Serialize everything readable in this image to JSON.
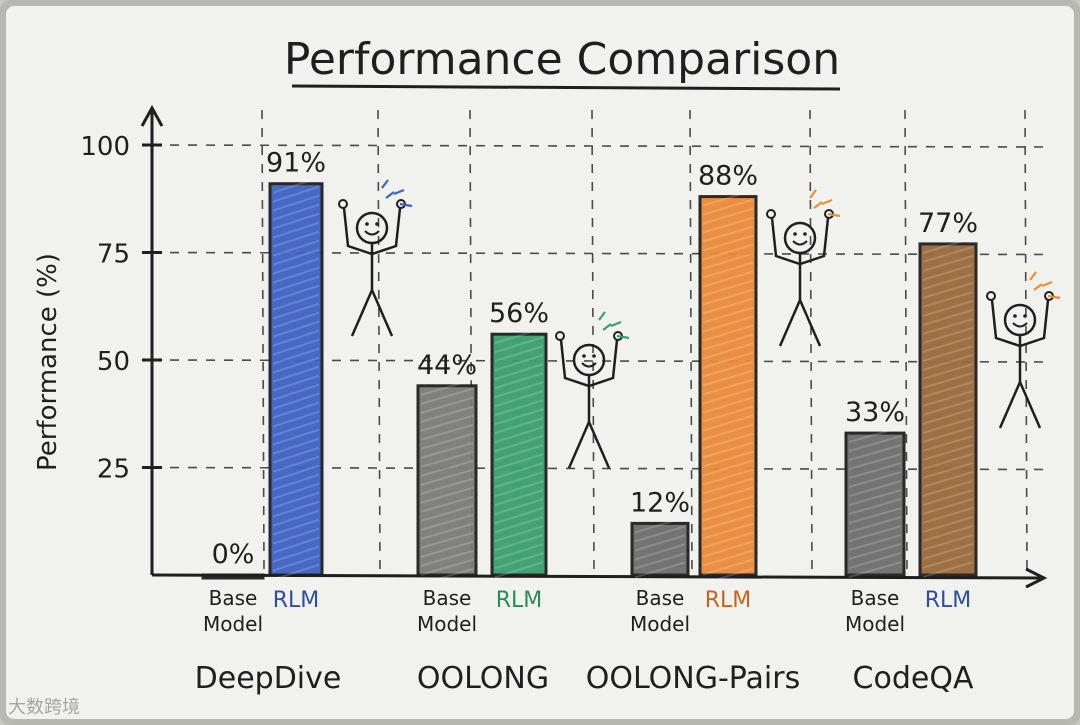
{
  "chart_data": {
    "type": "bar",
    "title": "Performance Comparison",
    "ylabel": "Performance (%)",
    "xlabel": "",
    "ylim": [
      0,
      100
    ],
    "yticks": [
      25,
      50,
      75,
      100
    ],
    "grid": true,
    "groups": [
      {
        "name": "DeepDive",
        "bars": [
          {
            "label": "Base Model",
            "value": 0,
            "value_label": "0%",
            "color": "#555555"
          },
          {
            "label": "RLM",
            "value": 91,
            "value_label": "91%",
            "color": "#3d62c4"
          }
        ]
      },
      {
        "name": "OOLONG",
        "bars": [
          {
            "label": "Base Model",
            "value": 44,
            "value_label": "44%",
            "color": "#7a7a7a"
          },
          {
            "label": "RLM",
            "value": 56,
            "value_label": "56%",
            "color": "#3a9e6e"
          }
        ]
      },
      {
        "name": "OOLONG-Pairs",
        "bars": [
          {
            "label": "Base Model",
            "value": 12,
            "value_label": "12%",
            "color": "#6e6e6e"
          },
          {
            "label": "RLM",
            "value": 88,
            "value_label": "88%",
            "color": "#ea8a38"
          }
        ]
      },
      {
        "name": "CodeQA",
        "bars": [
          {
            "label": "Base Model",
            "value": 33,
            "value_label": "33%",
            "color": "#6e6e6e"
          },
          {
            "label": "RLM",
            "value": 77,
            "value_label": "77%",
            "color": "#9a6a3a"
          }
        ]
      }
    ]
  },
  "colors": {
    "board": "#f1f1ee",
    "frame": "#b8b8b3",
    "ink": "#1f1f1f",
    "grid": "#4a4a4a",
    "rlm_label_blue": "#2f4f9e",
    "rlm_label_green": "#2e8a5a",
    "rlm_label_orange": "#c4661c",
    "spark_blue": "#3d62c4",
    "spark_green": "#3a9e6e",
    "spark_orange": "#e6913a"
  },
  "watermark": "大数跨境"
}
